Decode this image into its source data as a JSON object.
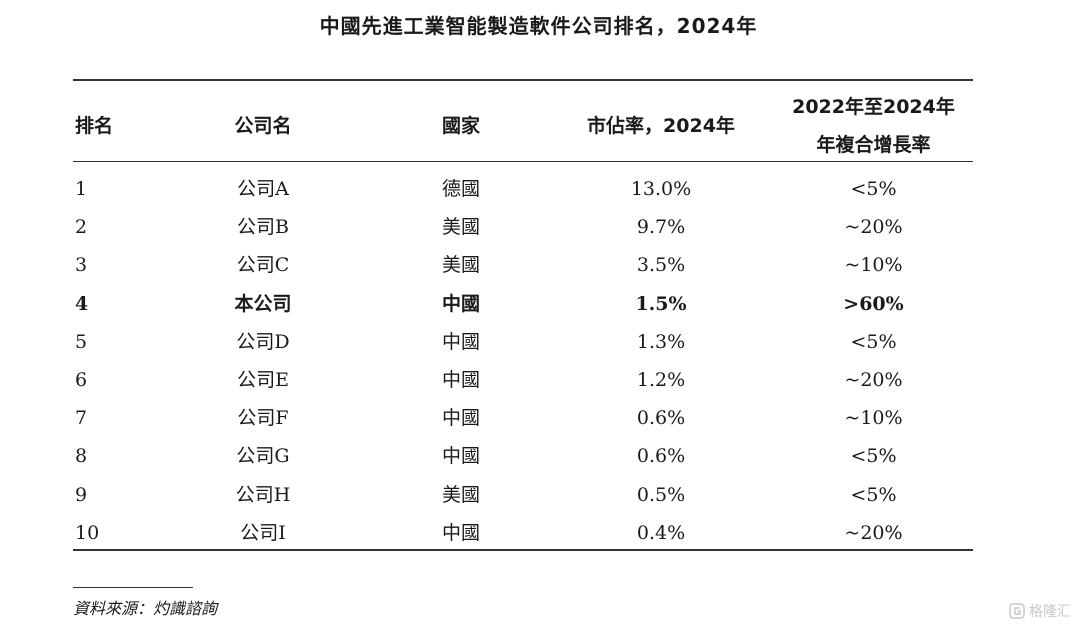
{
  "title": "中國先進工業智能製造軟件公司排名，2024年",
  "columns": {
    "rank": "排名",
    "company": "公司名",
    "country": "國家",
    "share": "市佔率，2024年",
    "cagr_line1": "2022年至2024年",
    "cagr_line2": "年複合增長率"
  },
  "rows": [
    {
      "rank": "1",
      "company": "公司A",
      "country": "德國",
      "share": "13.0%",
      "cagr": "<5%",
      "highlight": false
    },
    {
      "rank": "2",
      "company": "公司B",
      "country": "美國",
      "share": "9.7%",
      "cagr": "~20%",
      "highlight": false
    },
    {
      "rank": "3",
      "company": "公司C",
      "country": "美國",
      "share": "3.5%",
      "cagr": "~10%",
      "highlight": false
    },
    {
      "rank": "4",
      "company": "本公司",
      "country": "中國",
      "share": "1.5%",
      "cagr": ">60%",
      "highlight": true
    },
    {
      "rank": "5",
      "company": "公司D",
      "country": "中國",
      "share": "1.3%",
      "cagr": "<5%",
      "highlight": false
    },
    {
      "rank": "6",
      "company": "公司E",
      "country": "中國",
      "share": "1.2%",
      "cagr": "~20%",
      "highlight": false
    },
    {
      "rank": "7",
      "company": "公司F",
      "country": "中國",
      "share": "0.6%",
      "cagr": "~10%",
      "highlight": false
    },
    {
      "rank": "8",
      "company": "公司G",
      "country": "中國",
      "share": "0.6%",
      "cagr": "<5%",
      "highlight": false
    },
    {
      "rank": "9",
      "company": "公司H",
      "country": "美國",
      "share": "0.5%",
      "cagr": "<5%",
      "highlight": false
    },
    {
      "rank": "10",
      "company": "公司I",
      "country": "中國",
      "share": "0.4%",
      "cagr": "~20%",
      "highlight": false
    }
  ],
  "source": "資料來源：灼識諮詢",
  "watermark": {
    "text": "格隆汇",
    "icon": "gelonghui-logo-icon"
  }
}
